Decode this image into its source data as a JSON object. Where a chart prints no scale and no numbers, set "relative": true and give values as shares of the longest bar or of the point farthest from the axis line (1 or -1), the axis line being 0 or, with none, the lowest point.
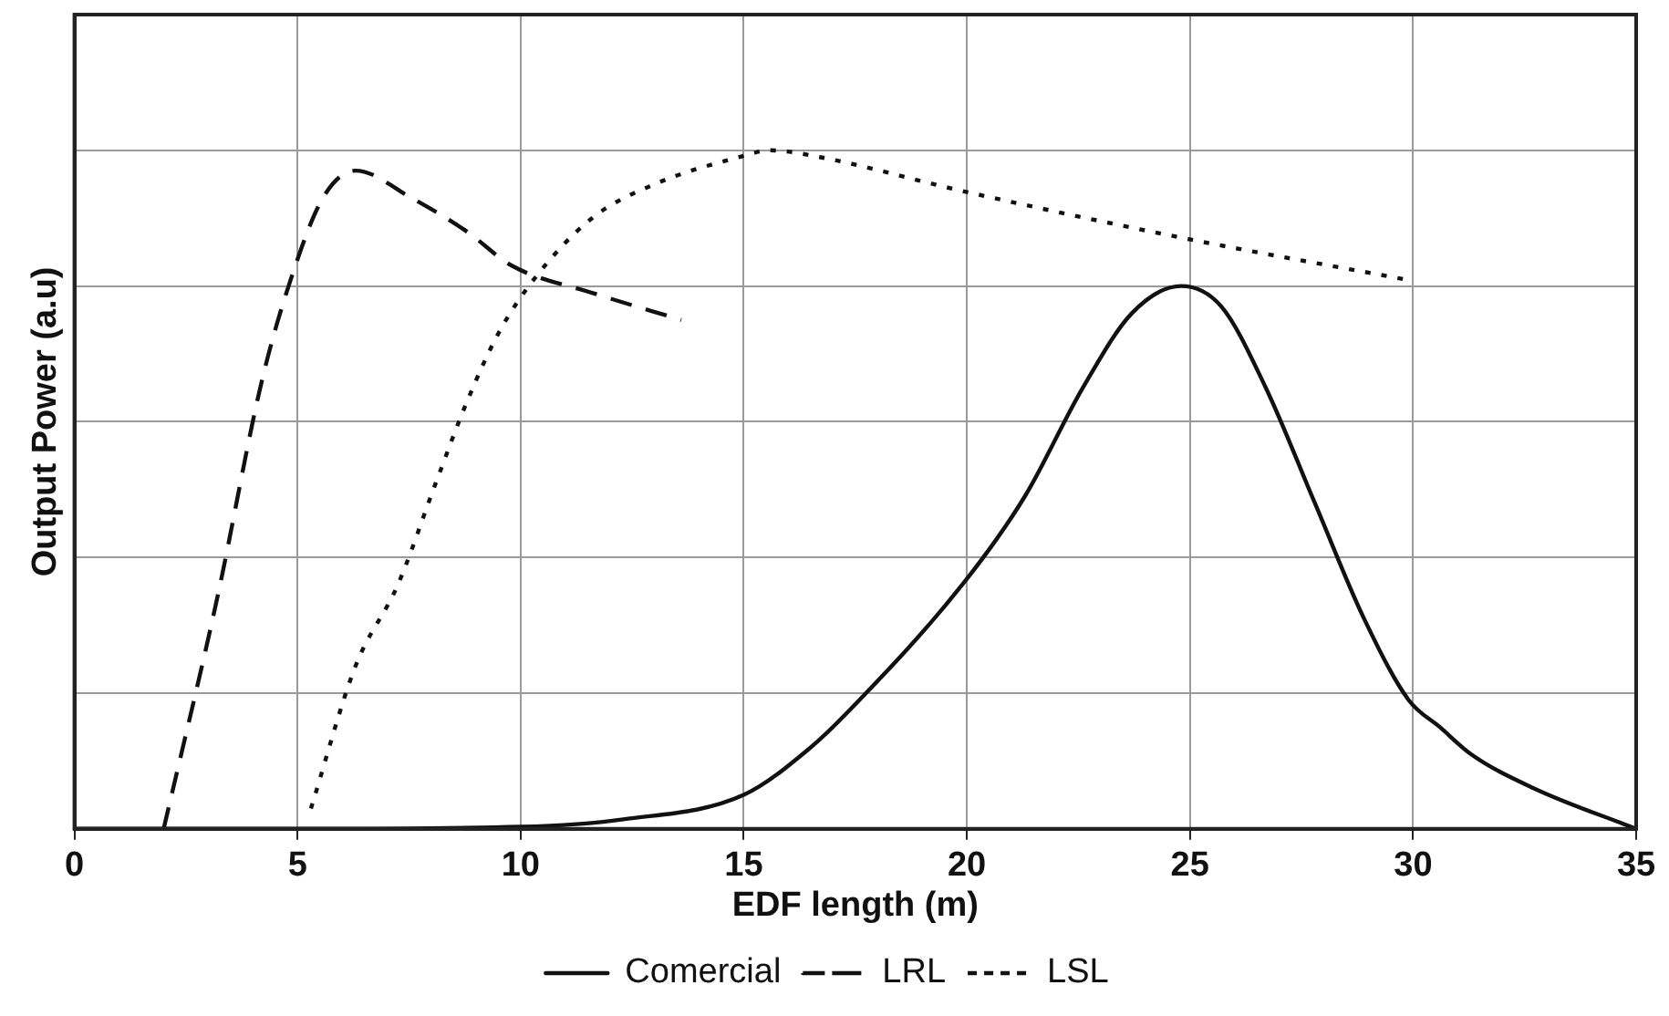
{
  "chart_data": {
    "type": "line",
    "relative": true,
    "xlabel": "EDF length (m)",
    "ylabel": "Output Power (a.u)",
    "xlim": [
      0,
      35
    ],
    "xticks": [
      0,
      5,
      10,
      15,
      20,
      25,
      30,
      35
    ],
    "grid": true,
    "legend": "bottom",
    "marker": "none",
    "series": [
      {
        "name": "Comercial",
        "color": "#111111",
        "line_style": "solid",
        "x": [
          0,
          5,
          10,
          12.3,
          15,
          16.5,
          17.3,
          19.9,
          21.3,
          22.6,
          23.7,
          24.8,
          25.7,
          26.7,
          27.8,
          28.9,
          29.9,
          30.6,
          31.3,
          32.7,
          35
        ],
        "values": [
          0,
          0,
          0.003,
          0.014,
          0.05,
          0.12,
          0.17,
          0.36,
          0.49,
          0.65,
          0.76,
          0.8,
          0.77,
          0.65,
          0.48,
          0.31,
          0.19,
          0.15,
          0.11,
          0.06,
          0
        ]
      },
      {
        "name": "LRL",
        "color": "#111111",
        "line_style": "dashed",
        "x": [
          2,
          3.2,
          4.2,
          4.85,
          5.57,
          6.3,
          7.55,
          8.8,
          9.8,
          11.6,
          13.6
        ],
        "values": [
          0,
          0.34,
          0.66,
          0.81,
          0.93,
          0.97,
          0.93,
          0.88,
          0.83,
          0.79,
          0.75
        ]
      },
      {
        "name": "LSL",
        "color": "#111111",
        "line_style": "dotted",
        "x": [
          5.3,
          6.3,
          7.25,
          8.1,
          8.8,
          9.5,
          10.3,
          11.6,
          13,
          14.9,
          15.6,
          16.7,
          19.9,
          24.9,
          29.8
        ],
        "values": [
          0.03,
          0.24,
          0.36,
          0.51,
          0.63,
          0.73,
          0.81,
          0.9,
          0.95,
          0.99,
          1,
          0.99,
          0.94,
          0.87,
          0.81
        ]
      }
    ]
  }
}
